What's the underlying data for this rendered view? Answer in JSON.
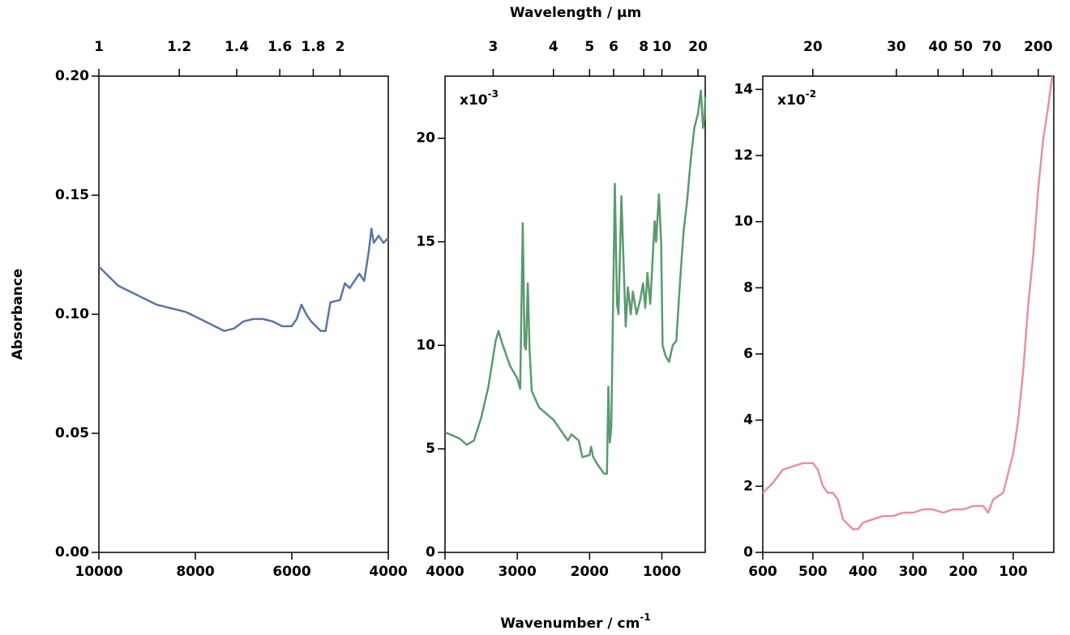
{
  "figure": {
    "x2label": "Wavelength / µm",
    "xlabel": "Wavenumber / cm",
    "xlabel_sup": "-1",
    "ylabel": "Absorbance"
  },
  "chart_data": [
    {
      "type": "line",
      "xlim": [
        10000,
        4000
      ],
      "ylim": [
        0,
        0.2
      ],
      "xticks": [
        10000,
        8000,
        6000,
        4000
      ],
      "yticks": [
        {
          "value": 0,
          "label": "0.00"
        },
        {
          "value": 0.05,
          "label": "0.05"
        },
        {
          "value": 0.1,
          "label": "0.10"
        },
        {
          "value": 0.15,
          "label": "0.15"
        },
        {
          "value": 0.2,
          "label": "0.20"
        }
      ],
      "x2ticks": [
        1,
        1.2,
        1.4,
        1.6,
        1.8,
        2
      ],
      "series": [
        {
          "color": "#5a75a6",
          "x": [
            10000,
            9800,
            9600,
            9400,
            9200,
            9000,
            8800,
            8600,
            8400,
            8200,
            8000,
            7800,
            7600,
            7400,
            7200,
            7000,
            6800,
            6600,
            6400,
            6200,
            6000,
            5900,
            5800,
            5700,
            5600,
            5400,
            5300,
            5200,
            5000,
            4900,
            4800,
            4700,
            4600,
            4500,
            4400,
            4350,
            4300,
            4200,
            4100,
            4000
          ],
          "values": [
            0.12,
            0.116,
            0.112,
            0.11,
            0.108,
            0.106,
            0.104,
            0.103,
            0.102,
            0.101,
            0.099,
            0.097,
            0.095,
            0.093,
            0.094,
            0.097,
            0.098,
            0.098,
            0.097,
            0.095,
            0.095,
            0.098,
            0.104,
            0.1,
            0.097,
            0.093,
            0.093,
            0.105,
            0.106,
            0.113,
            0.111,
            0.114,
            0.117,
            0.114,
            0.127,
            0.136,
            0.13,
            0.133,
            0.13,
            0.132
          ]
        }
      ]
    },
    {
      "type": "line",
      "xlim": [
        4000,
        400
      ],
      "ylim": [
        0,
        23
      ],
      "xticks": [
        4000,
        3000,
        2000,
        1000
      ],
      "yticks": [
        0,
        5,
        10,
        15,
        20
      ],
      "x2ticks": [
        3,
        4,
        5,
        6,
        8,
        10,
        20
      ],
      "multiplier": "x10",
      "multiplier_exp": "-3",
      "series": [
        {
          "color": "#5a9a6e",
          "x": [
            4000,
            3800,
            3700,
            3600,
            3500,
            3400,
            3300,
            3260,
            3200,
            3100,
            3000,
            2960,
            2925,
            2900,
            2880,
            2855,
            2830,
            2800,
            2700,
            2500,
            2300,
            2250,
            2150,
            2100,
            2000,
            1980,
            1950,
            1900,
            1800,
            1760,
            1740,
            1720,
            1700,
            1650,
            1620,
            1600,
            1560,
            1520,
            1500,
            1470,
            1430,
            1400,
            1350,
            1300,
            1260,
            1230,
            1200,
            1160,
            1100,
            1080,
            1040,
            1010,
            990,
            950,
            900,
            850,
            800,
            750,
            700,
            650,
            600,
            550,
            500,
            460,
            430,
            410,
            400
          ],
          "values": [
            5.8,
            5.5,
            5.2,
            5.4,
            6.5,
            8.0,
            10.2,
            10.7,
            10.0,
            9.0,
            8.4,
            7.9,
            15.9,
            10.0,
            9.8,
            13.0,
            9.8,
            7.8,
            7.0,
            6.4,
            5.4,
            5.7,
            5.4,
            4.6,
            4.7,
            5.1,
            4.6,
            4.3,
            3.8,
            3.8,
            8.0,
            5.3,
            6.0,
            17.8,
            12.0,
            11.5,
            17.2,
            13.0,
            10.9,
            12.8,
            11.5,
            12.6,
            11.5,
            12.2,
            13.0,
            11.8,
            13.5,
            12.0,
            16.0,
            15.0,
            17.3,
            15.0,
            10.0,
            9.5,
            9.2,
            10.0,
            10.2,
            13.0,
            15.5,
            17.0,
            19.0,
            20.5,
            21.2,
            22.3,
            20.5,
            21.0,
            22.0
          ]
        }
      ]
    },
    {
      "type": "line",
      "xlim": [
        600,
        19
      ],
      "ylim": [
        0,
        14.4
      ],
      "xticks": [
        600,
        500,
        400,
        300,
        200,
        100
      ],
      "yticks": [
        0,
        2,
        4,
        6,
        8,
        10,
        12,
        14
      ],
      "x2ticks": [
        20,
        30,
        40,
        50,
        70,
        200
      ],
      "multiplier": "x10",
      "multiplier_exp": "-2",
      "series": [
        {
          "color": "#e8919e",
          "x": [
            600,
            580,
            560,
            540,
            520,
            500,
            490,
            480,
            470,
            460,
            450,
            440,
            420,
            410,
            400,
            380,
            360,
            340,
            320,
            300,
            280,
            260,
            240,
            220,
            200,
            180,
            160,
            150,
            140,
            120,
            110,
            100,
            90,
            80,
            70,
            60,
            50,
            40,
            30,
            22
          ],
          "values": [
            1.8,
            2.1,
            2.5,
            2.6,
            2.7,
            2.7,
            2.5,
            2.0,
            1.8,
            1.8,
            1.6,
            1.0,
            0.7,
            0.7,
            0.9,
            1.0,
            1.1,
            1.1,
            1.2,
            1.2,
            1.3,
            1.3,
            1.2,
            1.3,
            1.3,
            1.4,
            1.4,
            1.2,
            1.6,
            1.8,
            2.4,
            3.0,
            4.0,
            5.5,
            7.5,
            9.0,
            11.0,
            12.5,
            13.5,
            14.4
          ]
        }
      ]
    }
  ]
}
